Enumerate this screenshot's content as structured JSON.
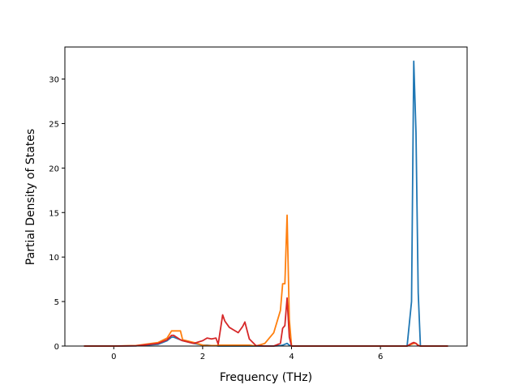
{
  "chart_data": {
    "type": "line",
    "xlabel": "Frequency (THz)",
    "ylabel": "Partial Density of States",
    "x": [
      -0.67,
      0,
      0.5,
      1.0,
      1.2,
      1.3,
      1.35,
      1.5,
      1.55,
      1.8,
      2.0,
      2.1,
      2.2,
      2.3,
      2.35,
      2.45,
      2.5,
      2.6,
      2.7,
      2.8,
      2.9,
      2.95,
      3.05,
      3.2,
      3.4,
      3.6,
      3.75,
      3.8,
      3.85,
      3.9,
      3.95,
      4.0,
      4.5,
      6.6,
      6.7,
      6.75,
      6.8,
      6.85,
      6.9,
      7.0,
      7.52
    ],
    "series": [
      {
        "color": "#1f77b4",
        "values": [
          0,
          0,
          0.02,
          0.2,
          0.6,
          1.0,
          1.0,
          0.7,
          0.6,
          0.3,
          0.1,
          0.1,
          0.05,
          0.05,
          0,
          0,
          0,
          0,
          0,
          0,
          0,
          0,
          0,
          0,
          0,
          0,
          0.05,
          0.1,
          0.2,
          0.3,
          0.1,
          0,
          0,
          0,
          5,
          32,
          24,
          6,
          0,
          0,
          0
        ]
      },
      {
        "color": "#ff7f0e",
        "values": [
          0,
          0,
          0.05,
          0.4,
          0.9,
          1.7,
          1.7,
          1.7,
          0.7,
          0.4,
          0.1,
          0.05,
          0.05,
          0.05,
          0.1,
          0.1,
          0.1,
          0.1,
          0.1,
          0.1,
          0.1,
          0.1,
          0.1,
          0,
          0.3,
          1.5,
          4,
          7,
          7,
          14.7,
          3,
          0,
          0,
          0,
          0.2,
          0.3,
          0.3,
          0.1,
          0,
          0,
          0
        ]
      },
      {
        "color": "#d62728",
        "values": [
          0,
          0,
          0.03,
          0.3,
          0.7,
          1.2,
          1.2,
          0.7,
          0.6,
          0.3,
          0.6,
          0.9,
          0.8,
          0.9,
          0.2,
          3.5,
          2.8,
          2.1,
          1.8,
          1.5,
          2.2,
          2.7,
          0.8,
          0.05,
          0,
          0,
          0.3,
          2,
          2.3,
          5.4,
          1,
          0,
          0,
          0,
          0.3,
          0.4,
          0.3,
          0.05,
          0,
          0,
          0
        ]
      }
    ],
    "xlim": [
      -1.1,
      7.95
    ],
    "xticks": [
      0,
      2,
      4,
      6
    ],
    "ylim": [
      0,
      33.6
    ],
    "yticks": [
      0,
      5,
      10,
      15,
      20,
      25,
      30
    ],
    "grid": false
  }
}
